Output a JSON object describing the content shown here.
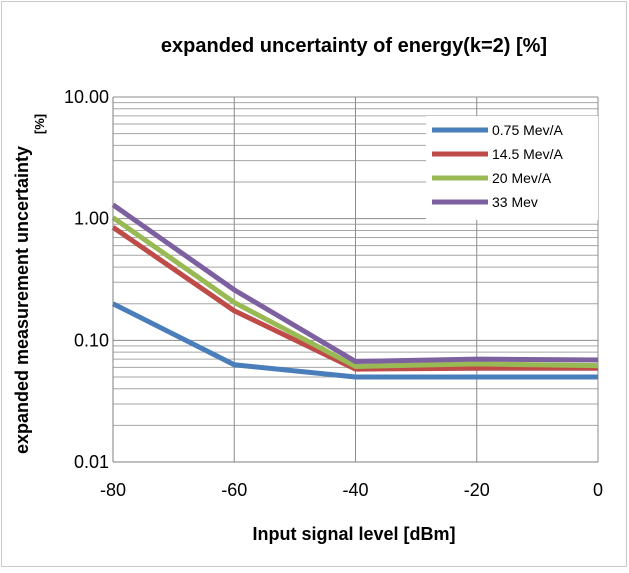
{
  "chart_data": {
    "type": "line",
    "title": "expanded uncertainty of energy(k=2) [%]",
    "xlabel": "Input signal level  [dBm]",
    "ylabel": "expanded measurement uncertainty",
    "ylabel_unit": "[%]",
    "x": [
      -80,
      -60,
      -40,
      -20,
      0
    ],
    "x_tick_labels": [
      "-80",
      "-60",
      "-40",
      "-20",
      "0"
    ],
    "xlim": [
      -80,
      0
    ],
    "ylim": [
      0.01,
      10
    ],
    "y_scale": "log",
    "y_tick_values": [
      0.01,
      0.1,
      1,
      10
    ],
    "y_tick_labels": [
      "0.01",
      "0.10",
      "1.00",
      "10.00"
    ],
    "grid": true,
    "legend_position": "top-right",
    "series": [
      {
        "name": "0.75 Mev/A",
        "color": "#4a7ebb",
        "values": [
          0.2,
          0.063,
          0.05,
          0.05,
          0.05
        ]
      },
      {
        "name": "14.5 Mev/A",
        "color": "#be4b48",
        "values": [
          0.85,
          0.175,
          0.058,
          0.059,
          0.059
        ]
      },
      {
        "name": "20 Mev/A",
        "color": "#98b954",
        "values": [
          1.02,
          0.205,
          0.061,
          0.064,
          0.062
        ]
      },
      {
        "name": "33 Mev",
        "color": "#7d60a0",
        "values": [
          1.3,
          0.26,
          0.067,
          0.07,
          0.069
        ]
      }
    ]
  }
}
